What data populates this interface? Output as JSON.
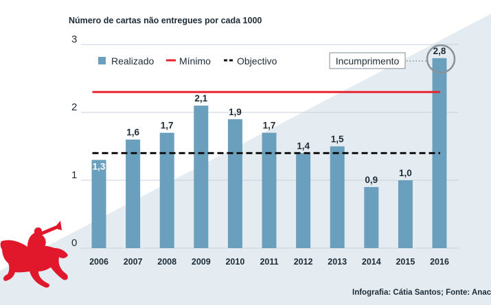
{
  "chart_data": {
    "type": "bar",
    "title": "Número de cartas  não entregues por cada 1000",
    "categories": [
      "2006",
      "2007",
      "2008",
      "2009",
      "2010",
      "2011",
      "2012",
      "2013",
      "2014",
      "2015",
      "2016"
    ],
    "values": [
      1.3,
      1.6,
      1.7,
      2.1,
      1.9,
      1.7,
      1.4,
      1.5,
      0.9,
      1.0,
      2.8
    ],
    "value_labels": [
      "1,3",
      "1,6",
      "1,7",
      "2,1",
      "1,9",
      "1,7",
      "1,4",
      "1,5",
      "0,9",
      "1,0",
      "2,8"
    ],
    "ylim": [
      0,
      3
    ],
    "yticks": [
      0,
      1,
      2,
      3
    ],
    "ytick_labels": [
      "0",
      "1",
      "2",
      "3"
    ],
    "grid": true,
    "series_name": "Realizado",
    "reference_lines": [
      {
        "name": "Mínimo",
        "value": 2.3,
        "style": "solid",
        "color": "#e8222e"
      },
      {
        "name": "Objectivo",
        "value": 1.4,
        "style": "dashed",
        "color": "#111111"
      }
    ],
    "legend": [
      {
        "label": "Realizado",
        "kind": "box",
        "color": "#6a9fbe"
      },
      {
        "label": "Mínimo",
        "kind": "line",
        "color": "#e8222e"
      },
      {
        "label": "Objectivo",
        "kind": "dashed",
        "color": "#111111"
      }
    ],
    "annotation": {
      "text": "Incumprimento",
      "target": "2016"
    },
    "footer": "Infografia: Cátia Santos; Fonte: Anacom"
  },
  "colors": {
    "bar": "#6a9fbe",
    "minimo": "#e8222e",
    "objectivo": "#111111",
    "background_wedge": "#e4ecf1",
    "grid": "#c8d2d8",
    "text": "#1d2b36",
    "logo": "#e1182c"
  },
  "logo": {
    "icon": "horse-and-rider-logo"
  }
}
